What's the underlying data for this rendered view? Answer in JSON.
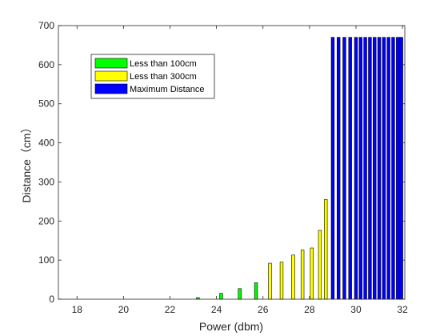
{
  "chart_data": {
    "type": "bar",
    "title": "",
    "xlabel": "Power (dbm)",
    "ylabel": "Distance（cm）",
    "xlim": [
      17.2,
      32.1
    ],
    "ylim": [
      0,
      700
    ],
    "xticks": [
      "18",
      "20",
      "22",
      "24",
      "26",
      "28",
      "30",
      "32"
    ],
    "yticks": [
      "0",
      "100",
      "200",
      "300",
      "400",
      "500",
      "600",
      "700"
    ],
    "grid": false,
    "legend_position": "top-left",
    "series": [
      {
        "name": "Less than 100cm",
        "color": "#00ff00",
        "x": [
          23.2,
          24.2,
          25.0,
          25.7
        ],
        "values": [
          4,
          15,
          27,
          42
        ]
      },
      {
        "name": "Less than 300cm",
        "color": "#ffff00",
        "x": [
          26.3,
          26.8,
          27.3,
          27.7,
          28.1,
          28.45,
          28.7
        ],
        "values": [
          92,
          95,
          113,
          126,
          131,
          176,
          255
        ]
      },
      {
        "name": "Maximum Distance",
        "color": "#0000ff",
        "x": [
          29.0,
          29.25,
          29.5,
          29.75,
          30.0,
          30.2,
          30.4,
          30.6,
          30.8,
          31.0,
          31.2,
          31.4,
          31.6,
          31.8,
          31.95
        ],
        "values": [
          670,
          670,
          670,
          670,
          670,
          670,
          670,
          670,
          670,
          670,
          670,
          670,
          670,
          670,
          670
        ]
      }
    ]
  }
}
